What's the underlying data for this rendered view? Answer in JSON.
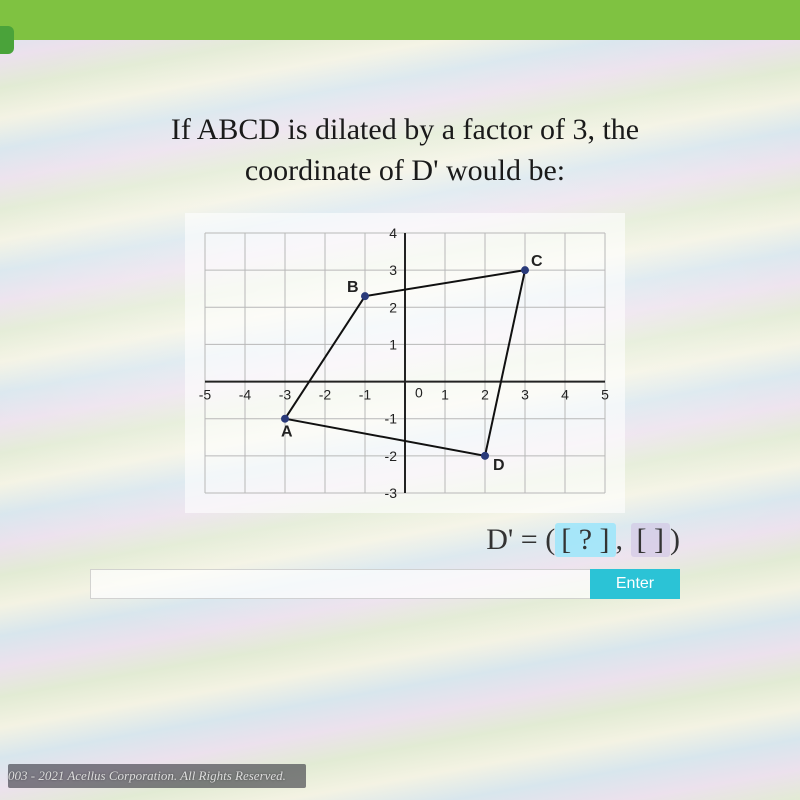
{
  "question": {
    "line1": "If ABCD is dilated by a factor of 3, the",
    "line2": "coordinate of D' would be:"
  },
  "graph": {
    "type": "coordinate-grid",
    "x_range": [
      -5,
      5
    ],
    "y_range": [
      -3,
      4
    ],
    "x_ticks": [
      -5,
      -4,
      -3,
      -2,
      -1,
      0,
      1,
      2,
      3,
      4,
      5
    ],
    "y_ticks": [
      -3,
      -2,
      -1,
      1,
      2,
      3,
      4
    ],
    "grid_color": "#b8b8b8",
    "axis_color": "#222222",
    "tick_fontsize": 14,
    "label_fontsize": 16,
    "background": "#ffffff",
    "shape_stroke": "#111111",
    "shape_stroke_width": 2,
    "point_fill": "#2a3a7a",
    "point_radius": 4,
    "points": {
      "A": {
        "x": -3,
        "y": -1,
        "label": "A",
        "label_dx": -4,
        "label_dy": 18
      },
      "B": {
        "x": -1,
        "y": 2.3,
        "label": "B",
        "label_dx": -18,
        "label_dy": -4
      },
      "C": {
        "x": 3,
        "y": 3,
        "label": "C",
        "label_dx": 6,
        "label_dy": -4
      },
      "D": {
        "x": 2,
        "y": -2,
        "label": "D",
        "label_dx": 8,
        "label_dy": 14
      }
    },
    "polygon_order": [
      "A",
      "B",
      "C",
      "D"
    ]
  },
  "answer": {
    "prefix": "D' = (",
    "slot1": "[ ? ]",
    "sep": ", ",
    "slot2": "[   ]",
    "suffix": ")"
  },
  "enter_label": "Enter",
  "footer": "003 - 2021 Acellus Corporation.  All Rights Reserved."
}
